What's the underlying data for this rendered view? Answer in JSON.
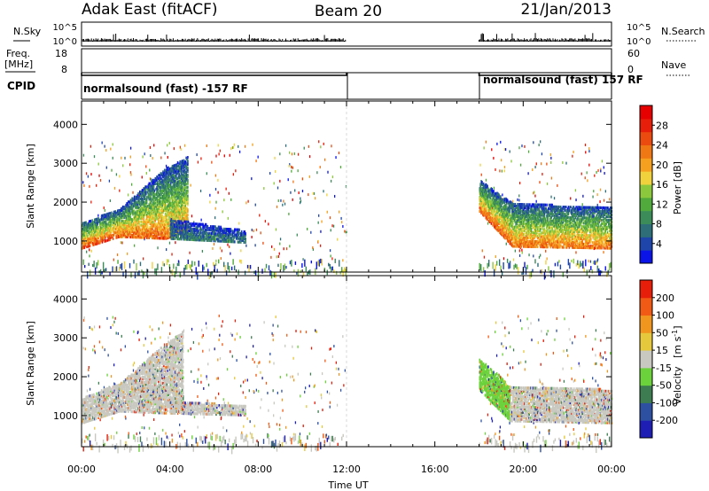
{
  "header": {
    "title_left": "Adak East (fitACF)",
    "title_center": "Beam 20",
    "title_right": "21/Jan/2013"
  },
  "chart_data": [
    {
      "type": "line",
      "name": "noise-panel",
      "left_label": "N.Sky",
      "right_label": "N.Search",
      "left_ticks": [
        "10^5",
        "10^0"
      ],
      "right_ticks": [
        "10^5",
        "10^0"
      ],
      "series": [
        {
          "name": "N.Sky",
          "x": [
            0,
            1,
            2,
            3,
            4,
            5,
            6,
            7,
            8,
            9,
            10,
            11,
            12,
            18,
            19,
            20,
            21,
            22,
            23,
            24
          ],
          "y": [
            0.25,
            0.28,
            0.22,
            0.26,
            0.24,
            0.25,
            0.23,
            0.24,
            0.22,
            0.23,
            0.22,
            0.22,
            0.22,
            0.22,
            0.26,
            0.28,
            0.24,
            0.25,
            0.22,
            0.22
          ]
        }
      ],
      "xlim": [
        0,
        24
      ]
    },
    {
      "type": "line",
      "name": "frequency-panel",
      "left_label": "Freq.",
      "left_unit": "[MHz]",
      "right_label": "Nave",
      "left_ticks": [
        "18",
        "8"
      ],
      "right_ticks": [
        "60",
        "0"
      ],
      "series": [
        {
          "name": "Freq.",
          "x": [
            0,
            12,
            18,
            24
          ],
          "y": [
            10.2,
            10.2,
            10.2,
            10.2
          ]
        }
      ],
      "xlim": [
        0,
        24
      ],
      "ylim": [
        8,
        18
      ]
    },
    {
      "type": "table",
      "name": "cpid-panel",
      "label": "CPID",
      "segments": [
        {
          "start": 0,
          "end": 12,
          "text": "normalsound (fast) -157 RF"
        },
        {
          "start": 18,
          "end": 24,
          "text": "normalsound (fast) 157 RF"
        }
      ]
    },
    {
      "type": "heatmap",
      "name": "power-panel",
      "ylabel": "Slant Range [km]",
      "yticks": [
        1000,
        2000,
        3000,
        4000
      ],
      "ylim": [
        200,
        4600
      ],
      "xlim": [
        0,
        24
      ],
      "colorbar_label": "Power [dB]",
      "colorbar_ticks": [
        "28",
        "24",
        "20",
        "16",
        "12",
        "8",
        "4"
      ],
      "colors": [
        "#0a14e6",
        "#1e46aa",
        "#2d6e78",
        "#3c8c5a",
        "#50aa3c",
        "#8cc83c",
        "#f0d23c",
        "#f5a01e",
        "#f07814",
        "#eb4b0f",
        "#e61e0a",
        "#e60000"
      ],
      "bands": [
        {
          "x0": 0,
          "x1": 1.7,
          "y0": 850,
          "y1": 1500,
          "y1_end": 1850,
          "y0_end": 1150,
          "level": 0.85
        },
        {
          "x0": 1.7,
          "x1": 3.8,
          "y0": 1150,
          "y1": 1850,
          "y0_end": 1100,
          "y1_end": 2900,
          "level": 0.78
        },
        {
          "x0": 3.8,
          "x1": 4.8,
          "y0": 1100,
          "y1": 2900,
          "y0_end": 1300,
          "y1_end": 3200,
          "level": 0.7
        },
        {
          "x0": 4.0,
          "x1": 7.4,
          "y0": 1100,
          "y1": 1600,
          "y0_end": 1000,
          "y1_end": 1300,
          "level": 0.25
        },
        {
          "x0": 18,
          "x1": 19.5,
          "y0": 1800,
          "y1": 2600,
          "y0_end": 900,
          "y1_end": 2000,
          "level": 0.8
        },
        {
          "x0": 19.5,
          "x1": 24,
          "y0": 900,
          "y1": 2000,
          "y0_end": 850,
          "y1_end": 1900,
          "level": 0.75
        }
      ]
    },
    {
      "type": "heatmap",
      "name": "velocity-panel",
      "ylabel": "Slant Range [km]",
      "yticks": [
        1000,
        2000,
        3000,
        4000
      ],
      "ylim": [
        200,
        4600
      ],
      "xlim": [
        0,
        24
      ],
      "xticks": [
        "00:00",
        "04:00",
        "08:00",
        "12:00",
        "16:00",
        "20:00",
        "00:00"
      ],
      "xlabel": "Time UT",
      "colorbar_label": "Velocity",
      "colorbar_unit": "[m s",
      "colorbar_unit_sup": "-1",
      "colorbar_unit_end": "]",
      "colorbar_ticks": [
        "200",
        "100",
        "50",
        "15",
        "-15",
        "-50",
        "-100",
        "-200"
      ],
      "colors": [
        "#1e1eb4",
        "#2d50a0",
        "#3c7c50",
        "#6cd23c",
        "#c8c8c0",
        "#e6c83c",
        "#f0961e",
        "#f05a14",
        "#e61e0a"
      ],
      "bands": [
        {
          "x0": 0,
          "x1": 1.7,
          "y0": 850,
          "y1": 1500,
          "y0_end": 1150,
          "y1_end": 1850,
          "level": 0.5
        },
        {
          "x0": 1.7,
          "x1": 3.8,
          "y0": 1150,
          "y1": 1850,
          "y0_end": 1100,
          "y1_end": 2900,
          "level": 0.5
        },
        {
          "x0": 3.8,
          "x1": 4.6,
          "y0": 1100,
          "y1": 2900,
          "y0_end": 1300,
          "y1_end": 3200,
          "level": 0.5
        },
        {
          "x0": 4.0,
          "x1": 7.4,
          "y0": 1100,
          "y1": 1400,
          "y0_end": 1050,
          "y1_end": 1300,
          "level": 0.5
        },
        {
          "x0": 18,
          "x1": 19.4,
          "y0": 1700,
          "y1": 2500,
          "y0_end": 900,
          "y1_end": 1800,
          "level": 0.38
        },
        {
          "x0": 19.4,
          "x1": 24,
          "y0": 900,
          "y1": 1800,
          "y0_end": 850,
          "y1_end": 1700,
          "level": 0.5
        }
      ]
    }
  ]
}
